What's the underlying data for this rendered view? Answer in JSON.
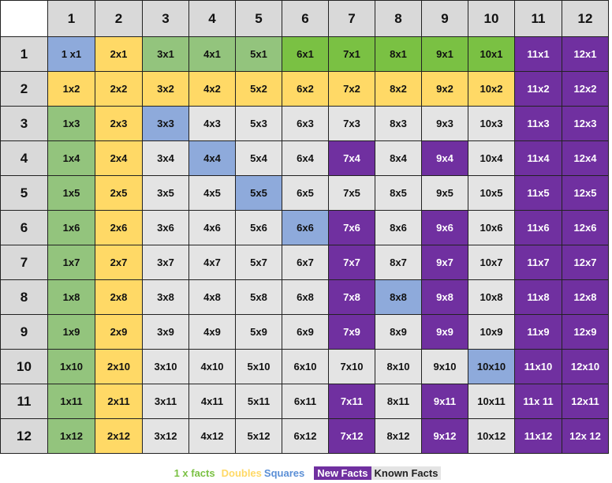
{
  "colors": {
    "header": "#d9d9d9",
    "corner": "#ffffff",
    "one": "#93c47d",
    "one_bright": "#7ac143",
    "double": "#ffd966",
    "square": "#8eaadb",
    "new": "#7030a0",
    "known": "#e4e4e4",
    "new_text": "#ffffff",
    "text": "#111111"
  },
  "table": {
    "col_headers": [
      "1",
      "2",
      "3",
      "4",
      "5",
      "6",
      "7",
      "8",
      "9",
      "10",
      "11",
      "12"
    ],
    "row_headers": [
      "1",
      "2",
      "3",
      "4",
      "5",
      "6",
      "7",
      "8",
      "9",
      "10",
      "11",
      "12"
    ],
    "rows": [
      [
        "1 x1",
        "2x1",
        "3x1",
        "4x1",
        "5x1",
        "6x1",
        "7x1",
        "8x1",
        "9x1",
        "10x1",
        "11x1",
        "12x1"
      ],
      [
        "1x2",
        "2x2",
        "3x2",
        "4x2",
        "5x2",
        "6x2",
        "7x2",
        "8x2",
        "9x2",
        "10x2",
        "11x2",
        "12x2"
      ],
      [
        "1x3",
        "2x3",
        "3x3",
        "4x3",
        "5x3",
        "6x3",
        "7x3",
        "8x3",
        "9x3",
        "10x3",
        "11x3",
        "12x3"
      ],
      [
        "1x4",
        "2x4",
        "3x4",
        "4x4",
        "5x4",
        "6x4",
        "7x4",
        "8x4",
        "9x4",
        "10x4",
        "11x4",
        "12x4"
      ],
      [
        "1x5",
        "2x5",
        "3x5",
        "4x5",
        "5x5",
        "6x5",
        "7x5",
        "8x5",
        "9x5",
        "10x5",
        "11x5",
        "12x5"
      ],
      [
        "1x6",
        "2x6",
        "3x6",
        "4x6",
        "5x6",
        "6x6",
        "7x6",
        "8x6",
        "9x6",
        "10x6",
        "11x6",
        "12x6"
      ],
      [
        "1x7",
        "2x7",
        "3x7",
        "4x7",
        "5x7",
        "6x7",
        "7x7",
        "8x7",
        "9x7",
        "10x7",
        "11x7",
        "12x7"
      ],
      [
        "1x8",
        "2x8",
        "3x8",
        "4x8",
        "5x8",
        "6x8",
        "7x8",
        "8x8",
        "9x8",
        "10x8",
        "11x8",
        "12x8"
      ],
      [
        "1x9",
        "2x9",
        "3x9",
        "4x9",
        "5x9",
        "6x9",
        "7x9",
        "8x9",
        "9x9",
        "10x9",
        "11x9",
        "12x9"
      ],
      [
        "1x10",
        "2x10",
        "3x10",
        "4x10",
        "5x10",
        "6x10",
        "7x10",
        "8x10",
        "9x10",
        "10x10",
        "11x10",
        "12x10"
      ],
      [
        "1x11",
        "2x11",
        "3x11",
        "4x11",
        "5x11",
        "6x11",
        "7x11",
        "8x11",
        "9x11",
        "10x11",
        "11x 11",
        "12x11"
      ],
      [
        "1x12",
        "2x12",
        "3x12",
        "4x12",
        "5x12",
        "6x12",
        "7x12",
        "8x12",
        "9x12",
        "10x12",
        "11x12",
        "12x 12"
      ]
    ],
    "cell_categories": [
      [
        "square",
        "double",
        "one",
        "one",
        "one",
        "one_bright",
        "one_bright",
        "one_bright",
        "one_bright",
        "one_bright",
        "new",
        "new"
      ],
      [
        "double",
        "double",
        "double",
        "double",
        "double",
        "double",
        "double",
        "double",
        "double",
        "double",
        "new",
        "new"
      ],
      [
        "one",
        "double",
        "square",
        "known",
        "known",
        "known",
        "known",
        "known",
        "known",
        "known",
        "new",
        "new"
      ],
      [
        "one",
        "double",
        "known",
        "square",
        "known",
        "known",
        "new",
        "known",
        "new",
        "known",
        "new",
        "new"
      ],
      [
        "one",
        "double",
        "known",
        "known",
        "square",
        "known",
        "known",
        "known",
        "known",
        "known",
        "new",
        "new"
      ],
      [
        "one",
        "double",
        "known",
        "known",
        "known",
        "square",
        "new",
        "known",
        "new",
        "known",
        "new",
        "new"
      ],
      [
        "one",
        "double",
        "known",
        "known",
        "known",
        "known",
        "new",
        "known",
        "new",
        "known",
        "new",
        "new"
      ],
      [
        "one",
        "double",
        "known",
        "known",
        "known",
        "known",
        "new",
        "square",
        "new",
        "known",
        "new",
        "new"
      ],
      [
        "one",
        "double",
        "known",
        "known",
        "known",
        "known",
        "new",
        "known",
        "new",
        "known",
        "new",
        "new"
      ],
      [
        "one",
        "double",
        "known",
        "known",
        "known",
        "known",
        "known",
        "known",
        "known",
        "square",
        "new",
        "new"
      ],
      [
        "one",
        "double",
        "known",
        "known",
        "known",
        "known",
        "new",
        "known",
        "new",
        "known",
        "new",
        "new"
      ],
      [
        "one",
        "double",
        "known",
        "known",
        "known",
        "known",
        "new",
        "known",
        "new",
        "known",
        "new",
        "new"
      ]
    ]
  },
  "legend": {
    "one_label": "1 x facts",
    "doubles_label": "Doubles",
    "squares_label": "Squares",
    "new_label": "New Facts",
    "known_label": "Known Facts"
  }
}
